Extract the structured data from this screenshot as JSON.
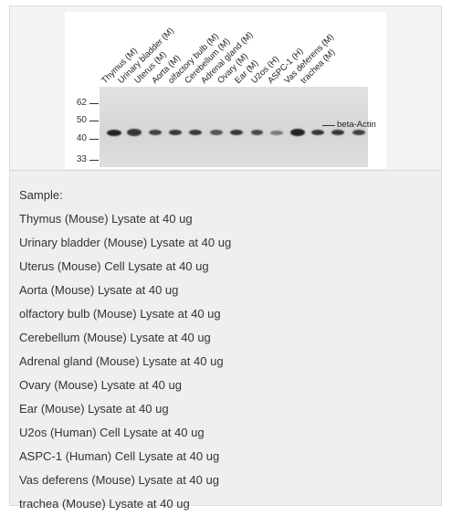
{
  "figure": {
    "lanes": [
      "Thymus (M)",
      "Urinary bladder (M)",
      "Uterus (M)",
      "Aorta (M)",
      "olfactory bulb (M)",
      "Cerebellum (M)",
      "Adrenal gland (M)",
      "Ovary (M)",
      "Ear (M)",
      "U2os (H)",
      "ASPC-1 (H)",
      "Vas deferens (M)",
      "trachea (M)"
    ],
    "mw_markers": [
      "62",
      "50",
      "40",
      "33"
    ],
    "target_label": "beta-Actin"
  },
  "legend": {
    "heading": "Sample:",
    "items": [
      "Thymus (Mouse) Lysate at 40 ug",
      "Urinary bladder (Mouse) Lysate at 40 ug",
      "Uterus (Mouse) Cell Lysate at 40 ug",
      "Aorta (Mouse) Lysate at 40 ug",
      "olfactory bulb (Mouse) Lysate at 40 ug",
      "Cerebellum (Mouse) Lysate at 40 ug",
      "Adrenal gland (Mouse) Lysate at 40 ug",
      "Ovary (Mouse) Lysate at 40 ug",
      "Ear (Mouse) Lysate at 40 ug",
      "U2os (Human) Cell Lysate at 40 ug",
      "ASPC-1 (Human) Cell Lysate at 40 ug",
      "Vas deferens (Mouse) Lysate at 40 ug",
      "trachea (Mouse) Lysate at 40 ug"
    ]
  }
}
